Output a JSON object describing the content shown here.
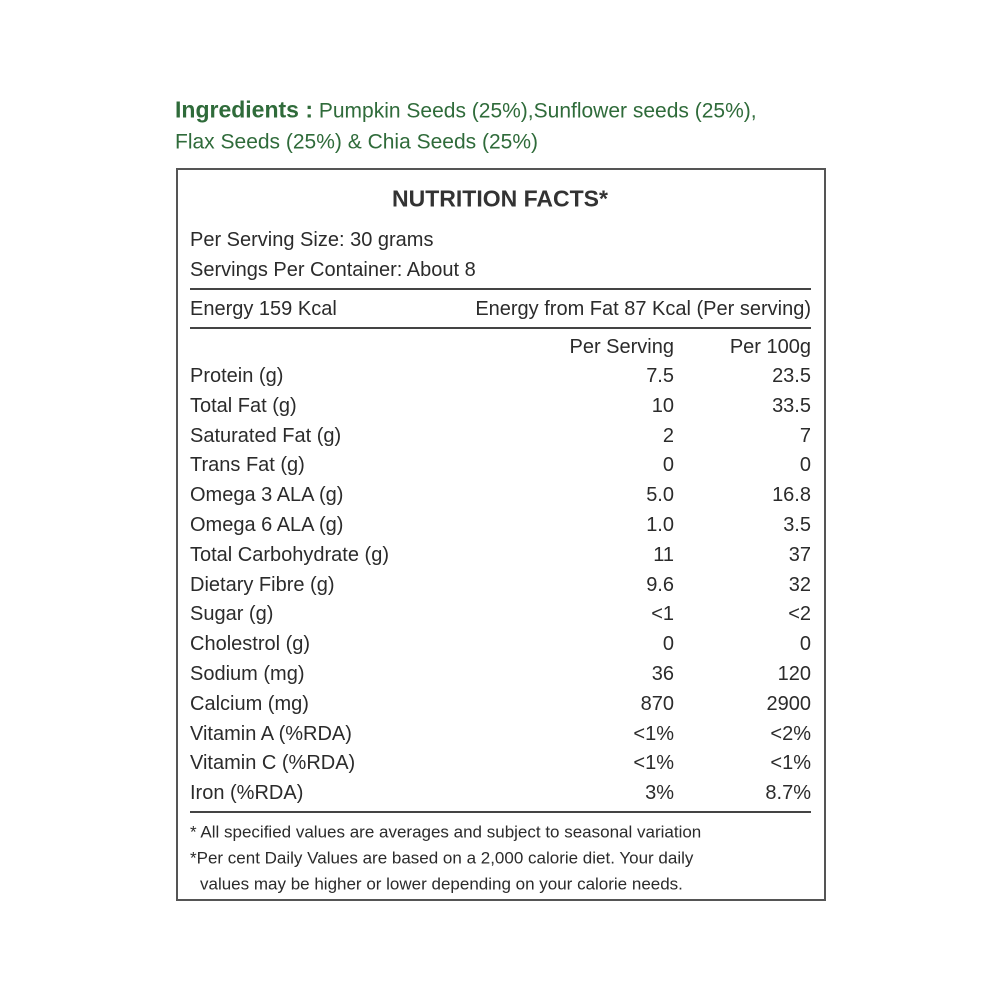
{
  "ingredients": {
    "label": "Ingredients :",
    "lines": [
      "Pumpkin Seeds (25%),Sunflower seeds (25%),",
      "Flax Seeds (25%) & Chia Seeds (25%)"
    ]
  },
  "nutrition": {
    "title": "NUTRITION FACTS*",
    "serving_size": "Per Serving Size: 30 grams",
    "servings_per_container": "Servings Per Container: About 8",
    "energy": "Energy 159 Kcal",
    "energy_from_fat": "Energy from Fat 87 Kcal (Per serving)",
    "columns": [
      "Per Serving",
      "Per 100g"
    ],
    "rows": [
      [
        "Protein (g)",
        "7.5",
        "23.5"
      ],
      [
        "Total Fat (g)",
        "10",
        "33.5"
      ],
      [
        "Saturated Fat (g)",
        "2",
        "7"
      ],
      [
        "Trans Fat (g)",
        "0",
        "0"
      ],
      [
        "Omega 3 ALA (g)",
        "5.0",
        "16.8"
      ],
      [
        "Omega 6 ALA (g)",
        "1.0",
        "3.5"
      ],
      [
        "Total Carbohydrate (g)",
        "11",
        "37"
      ],
      [
        "Dietary Fibre (g)",
        "9.6",
        "32"
      ],
      [
        "Sugar (g)",
        "<1",
        "<2"
      ],
      [
        "Cholestrol (g)",
        "0",
        "0"
      ],
      [
        "Sodium (mg)",
        "36",
        "120"
      ],
      [
        "Calcium (mg)",
        "870",
        "2900"
      ],
      [
        "Vitamin A (%RDA)",
        "<1%",
        "<2%"
      ],
      [
        "Vitamin C (%RDA)",
        "<1%",
        "<1%"
      ],
      [
        "Iron (%RDA)",
        "3%",
        "8.7%"
      ]
    ],
    "footnotes": [
      "* All specified values are averages and subject to seasonal variation",
      "*Per cent Daily Values are based on a 2,000 calorie diet. Your daily",
      "values may be higher or lower depending on your calorie needs."
    ]
  }
}
